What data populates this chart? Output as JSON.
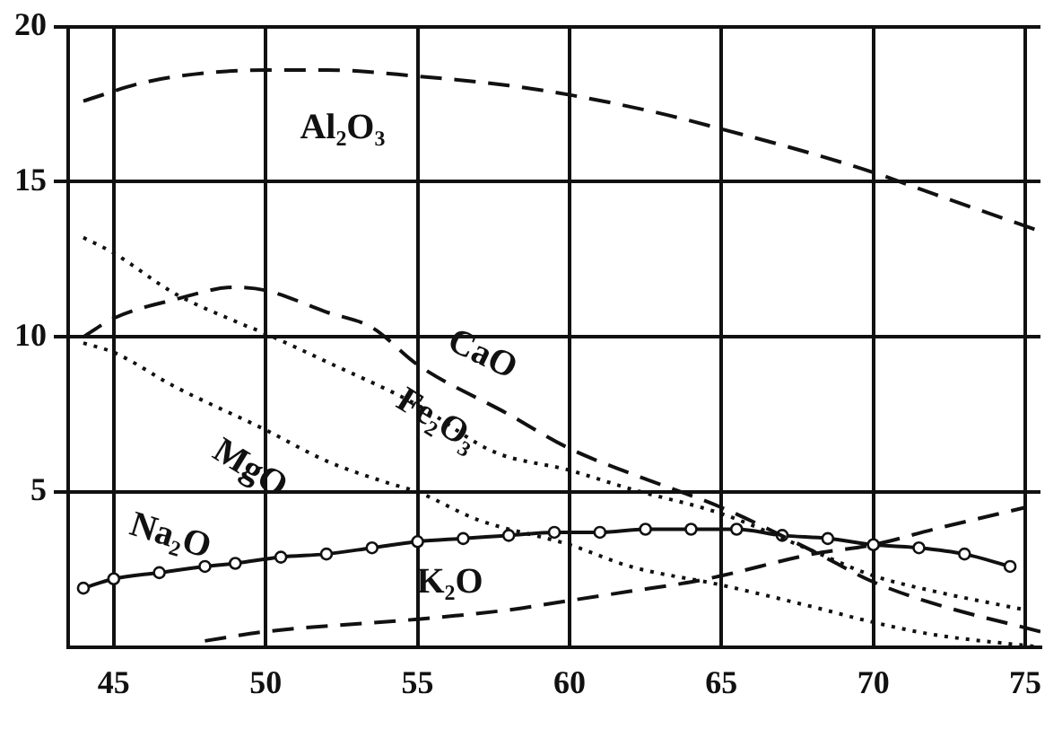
{
  "chart_data": {
    "type": "line",
    "xlim": [
      43.5,
      75.5
    ],
    "ylim": [
      0,
      20
    ],
    "xticks": [
      45,
      50,
      55,
      60,
      65,
      70,
      75
    ],
    "yticks": [
      5,
      10,
      15,
      20
    ],
    "grid": true,
    "legend": false,
    "marker": "none",
    "series": [
      {
        "name": "Al₂O₃",
        "color": "#111111",
        "line_style": "dashed",
        "x": [
          44,
          46,
          48,
          50,
          52,
          55,
          58,
          60,
          63,
          65,
          68,
          70,
          72,
          75.5
        ],
        "values": [
          17.6,
          18.2,
          18.5,
          18.6,
          18.6,
          18.4,
          18.1,
          17.8,
          17.2,
          16.7,
          15.9,
          15.3,
          14.6,
          13.4
        ]
      },
      {
        "name": "CaO",
        "color": "#111111",
        "line_style": "dashed",
        "x": [
          44,
          45,
          47,
          49,
          50,
          52,
          53.5,
          55,
          58,
          60,
          62,
          65,
          68,
          70,
          72,
          75.5
        ],
        "values": [
          10.0,
          10.6,
          11.2,
          11.6,
          11.5,
          10.8,
          10.3,
          9.1,
          7.5,
          6.4,
          5.6,
          4.5,
          3.1,
          2.1,
          1.4,
          0.5
        ]
      },
      {
        "name": "Fe₂O₃",
        "color": "#111111",
        "line_style": "dotted",
        "x": [
          44,
          45,
          47,
          49,
          50,
          52,
          55,
          57.5,
          60,
          62,
          65,
          68,
          70,
          72,
          75
        ],
        "values": [
          13.2,
          12.7,
          11.4,
          10.5,
          10.1,
          9.2,
          7.8,
          6.3,
          5.7,
          5.1,
          4.3,
          3.1,
          2.3,
          1.8,
          1.2
        ]
      },
      {
        "name": "MgO",
        "color": "#111111",
        "line_style": "dotted",
        "x": [
          44,
          45,
          47,
          50,
          52,
          54,
          55,
          57,
          60,
          62,
          65,
          68,
          70,
          72,
          75.5
        ],
        "values": [
          9.8,
          9.5,
          8.4,
          7.0,
          6.0,
          5.3,
          5.0,
          4.1,
          3.3,
          2.6,
          2.0,
          1.3,
          0.8,
          0.4,
          0.0
        ]
      },
      {
        "name": "Na₂O",
        "color": "#111111",
        "line_style": "solid",
        "marker": "circle",
        "x": [
          44,
          45,
          46.5,
          48,
          49,
          50.5,
          52,
          53.5,
          55,
          56.5,
          58,
          59.5,
          61,
          62.5,
          64,
          65.5,
          67,
          68.5,
          70,
          71.5,
          73,
          74.5
        ],
        "values": [
          1.9,
          2.2,
          2.4,
          2.6,
          2.7,
          2.9,
          3.0,
          3.2,
          3.4,
          3.5,
          3.6,
          3.7,
          3.7,
          3.8,
          3.8,
          3.8,
          3.6,
          3.5,
          3.3,
          3.2,
          3.0,
          2.6
        ]
      },
      {
        "name": "K₂O",
        "color": "#111111",
        "line_style": "dashed",
        "x": [
          48,
          50,
          55,
          58,
          60,
          62,
          64,
          65,
          68,
          70,
          72,
          75
        ],
        "values": [
          0.2,
          0.5,
          0.9,
          1.2,
          1.5,
          1.8,
          2.1,
          2.3,
          3.0,
          3.3,
          3.8,
          4.5
        ]
      }
    ]
  }
}
